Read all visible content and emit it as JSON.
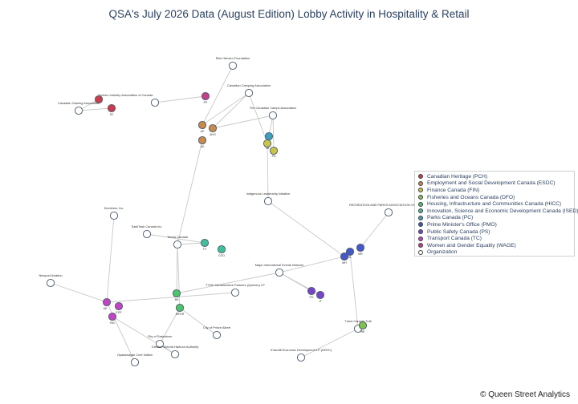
{
  "title": "QSA's July 2026 Data (August Edition) Lobby Activity in Hospitality & Retail",
  "credit": "© Queen Street Analytics",
  "legend": [
    {
      "label": "Canadian Heritage (PCH)",
      "color": "#cc3b4b"
    },
    {
      "label": "Employment and Social Development Canada (ESDC)",
      "color": "#c98a4a"
    },
    {
      "label": "Finance Canada (FIN)",
      "color": "#c9c44a"
    },
    {
      "label": "Fisheries and Oceans Canada (DFO)",
      "color": "#7fc44a"
    },
    {
      "label": "Housing, Infrastructure and Communities Canada (HICC)",
      "color": "#4ec46a"
    },
    {
      "label": "Innovation, Science and Economic Development Canada (ISED)",
      "color": "#3fbf9a"
    },
    {
      "label": "Parks Canada (PC)",
      "color": "#3c9fbf"
    },
    {
      "label": "Prime Minister's Office (PMO)",
      "color": "#4458c9"
    },
    {
      "label": "Public Safety Canada (PS)",
      "color": "#7a44c9"
    },
    {
      "label": "Transport Canada (TC)",
      "color": "#c144c4"
    },
    {
      "label": "Women and Gender Equality (WAGE)",
      "color": "#c43f8a"
    },
    {
      "label": "Organization",
      "color": "#ffffff"
    }
  ],
  "nodes": [
    {
      "id": "rh",
      "label": "Rick Hansen Foundation",
      "cat": "org"
    },
    {
      "id": "cca",
      "label": "Canadian Camping Association",
      "cat": "org"
    },
    {
      "id": "tia",
      "label": "Tourism Industry Association of Canada",
      "cat": "org"
    },
    {
      "id": "tca",
      "label": "The Canadian Camps Association",
      "cat": "org"
    },
    {
      "id": "cga",
      "label": "Canadian Gaming Association",
      "cat": "org"
    },
    {
      "id": "pch1",
      "label": "",
      "cat": "pch"
    },
    {
      "id": "pch2",
      "label": "SC",
      "cat": "pch"
    },
    {
      "id": "pp",
      "label": "PP",
      "cat": "wage"
    },
    {
      "id": "esdc1",
      "label": "AP",
      "cat": "esdc"
    },
    {
      "id": "esdc2",
      "label": "AHG",
      "cat": "esdc"
    },
    {
      "id": "esdc3",
      "label": "AD",
      "cat": "esdc"
    },
    {
      "id": "pc1",
      "label": "",
      "cat": "pc"
    },
    {
      "id": "fin1",
      "label": "VB",
      "cat": "fin"
    },
    {
      "id": "fin2",
      "label": "PH",
      "cat": "fin"
    },
    {
      "id": "ila",
      "label": "Indigenous Leadership Initiative",
      "cat": "org"
    },
    {
      "id": "rpac",
      "label": "RECREATION AND PARKS ASSOCIATION OF",
      "cat": "org"
    },
    {
      "id": "dom",
      "label": "Dominion, Inc.",
      "cat": "org"
    },
    {
      "id": "sask",
      "label": "SaskTask Canada Inc.",
      "cat": "org"
    },
    {
      "id": "tc",
      "label": "Tennis Canada",
      "cat": "org"
    },
    {
      "id": "ised1",
      "label": "TC",
      "cat": "ised"
    },
    {
      "id": "ised2",
      "label": "CGO",
      "cat": "ised"
    },
    {
      "id": "pmo1",
      "label": "MH",
      "cat": "pmo"
    },
    {
      "id": "pmo2",
      "label": "SL",
      "cat": "pmo"
    },
    {
      "id": "pmo3",
      "label": "MR",
      "cat": "pmo"
    },
    {
      "id": "mien",
      "label": "Major International Events Network",
      "cat": "org"
    },
    {
      "id": "ps1",
      "label": "PG",
      "cat": "ps"
    },
    {
      "id": "ps2",
      "label": "JT",
      "cat": "ps"
    },
    {
      "id": "nav",
      "label": "Newport Aviation",
      "cat": "org"
    },
    {
      "id": "tyru",
      "label": "TYRU Infrastructure Partners (Quebec) LP",
      "cat": "org"
    },
    {
      "id": "hicc1",
      "label": "BH",
      "cat": "hicc"
    },
    {
      "id": "hicc2",
      "label": "MPOR",
      "cat": "hicc"
    },
    {
      "id": "tc1",
      "label": "AD",
      "cat": "tc"
    },
    {
      "id": "tc2",
      "label": "EOF",
      "cat": "tc"
    },
    {
      "id": "tc3",
      "label": "TNC",
      "cat": "tc"
    },
    {
      "id": "cpa",
      "label": "City of Prince Albert",
      "cat": "org"
    },
    {
      "id": "cs",
      "label": "City of Saskatoon",
      "cat": "org"
    },
    {
      "id": "gvha",
      "label": "Greater Victoria Harbour Authority",
      "cat": "org"
    },
    {
      "id": "ocn",
      "label": "Opaskwayak Cree Nation",
      "cat": "org"
    },
    {
      "id": "tct",
      "label": "Trans Canada Trail",
      "cat": "org"
    },
    {
      "id": "dfo1",
      "label": "RE",
      "cat": "dfo"
    },
    {
      "id": "kedc",
      "label": "K'asuttit Economic Development LP (KEDC)",
      "cat": "org"
    }
  ],
  "edges": [
    [
      "rh",
      "esdc1"
    ],
    [
      "cca",
      "esdc1"
    ],
    [
      "cca",
      "esdc2"
    ],
    [
      "cca",
      "fin1"
    ],
    [
      "tca",
      "esdc2"
    ],
    [
      "tca",
      "fin1"
    ],
    [
      "tca",
      "fin2"
    ],
    [
      "tia",
      "pp"
    ],
    [
      "cga",
      "pch1"
    ],
    [
      "cga",
      "pch2"
    ],
    [
      "esdc3",
      "tc"
    ],
    [
      "pc1",
      "fin1"
    ],
    [
      "fin1",
      "ila"
    ],
    [
      "ila",
      "pmo1"
    ],
    [
      "rpac",
      "pmo3"
    ],
    [
      "sask",
      "ised1"
    ],
    [
      "tc",
      "ised1"
    ],
    [
      "tc",
      "hicc1"
    ],
    [
      "tc",
      "hicc2"
    ],
    [
      "dom",
      "tc1"
    ],
    [
      "nav",
      "tc1"
    ],
    [
      "tc1",
      "tyru"
    ],
    [
      "tc1",
      "ocn"
    ],
    [
      "tc3",
      "gvha"
    ],
    [
      "hicc2",
      "cs"
    ],
    [
      "hicc2",
      "cpa"
    ],
    [
      "cs",
      "gvha"
    ],
    [
      "mien",
      "pmo1"
    ],
    [
      "mien",
      "hicc1"
    ],
    [
      "mien",
      "ps1"
    ],
    [
      "mien",
      "ps2"
    ],
    [
      "pmo2",
      "tct"
    ],
    [
      "tct",
      "dfo1"
    ],
    [
      "tct",
      "kedc"
    ],
    [
      "pmo1",
      "pmo2"
    ]
  ]
}
